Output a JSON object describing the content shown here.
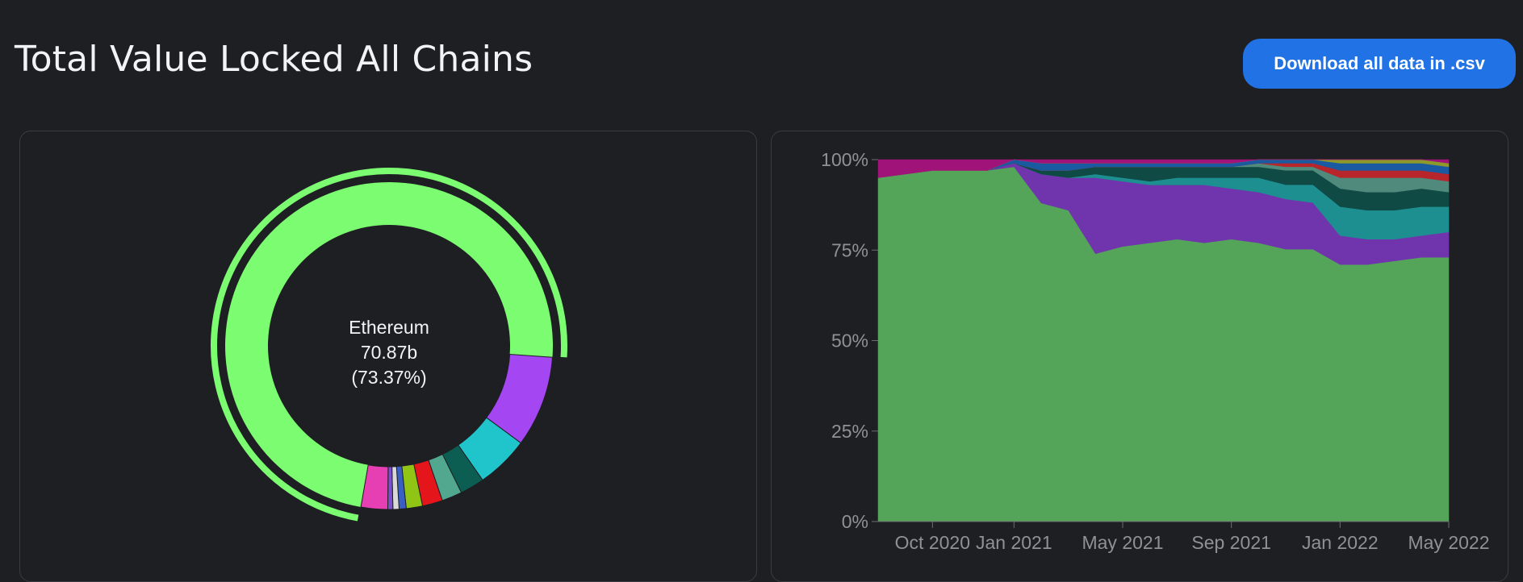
{
  "header": {
    "title": "Total Value Locked All Chains",
    "download_label": "Download all data in .csv"
  },
  "donut": {
    "center_name": "Ethereum",
    "center_value": "70.87b",
    "center_pct": "(73.37%)"
  },
  "chart_data": [
    {
      "type": "pie",
      "variant": "donut",
      "title": "",
      "series": [
        {
          "name": "Ethereum",
          "share": 73.37,
          "color": "#7cfc70"
        },
        {
          "name": "",
          "share": 9.0,
          "color": "#a446f2"
        },
        {
          "name": "",
          "share": 5.2,
          "color": "#20c5cb"
        },
        {
          "name": "",
          "share": 2.4,
          "color": "#0d5e52"
        },
        {
          "name": "",
          "share": 2.0,
          "color": "#52a78f"
        },
        {
          "name": "",
          "share": 2.0,
          "color": "#e4151b"
        },
        {
          "name": "",
          "share": 1.6,
          "color": "#91c515"
        },
        {
          "name": "",
          "share": 0.7,
          "color": "#3a5fc4"
        },
        {
          "name": "",
          "share": 0.6,
          "color": "#d9d9d9"
        },
        {
          "name": "",
          "share": 0.5,
          "color": "#7b4fcf"
        },
        {
          "name": "",
          "share": 2.63,
          "color": "#e63fb3"
        }
      ],
      "highlighted": "Ethereum"
    },
    {
      "type": "area",
      "stacked": "percent",
      "title": "",
      "x": [
        "2020-08",
        "2020-09",
        "2020-10",
        "2020-11",
        "2020-12",
        "2021-01",
        "2021-02",
        "2021-03",
        "2021-04",
        "2021-05",
        "2021-06",
        "2021-07",
        "2021-08",
        "2021-09",
        "2021-10",
        "2021-11",
        "2021-12",
        "2022-01",
        "2022-02",
        "2022-03",
        "2022-04",
        "2022-05"
      ],
      "x_ticks": [
        "Oct 2020",
        "Jan 2021",
        "May 2021",
        "Sep 2021",
        "Jan 2022",
        "May 2022"
      ],
      "ylim": [
        0,
        100
      ],
      "y_ticks": [
        "0%",
        "25%",
        "50%",
        "75%",
        "100%"
      ],
      "series": [
        {
          "name": "Ethereum",
          "color": "#54a559",
          "values": [
            95,
            96,
            97,
            97,
            97,
            98,
            88,
            86,
            74,
            76,
            77,
            78,
            77,
            78,
            77,
            76,
            76,
            71,
            71,
            72,
            73,
            73
          ]
        },
        {
          "name": "",
          "color": "#7035ad",
          "values": [
            0,
            0,
            0,
            0,
            0,
            1,
            8,
            9,
            21,
            18,
            16,
            15,
            16,
            14,
            14,
            14,
            13,
            8,
            7,
            6,
            6,
            7
          ]
        },
        {
          "name": "",
          "color": "#1e8f90",
          "values": [
            0,
            0,
            0,
            0,
            0,
            0,
            0,
            0,
            1,
            1,
            1,
            2,
            2,
            3,
            4,
            4,
            5,
            8,
            8,
            8,
            8,
            7
          ]
        },
        {
          "name": "",
          "color": "#0f4a45",
          "values": [
            0,
            0,
            0,
            0,
            0,
            0,
            1,
            2,
            2,
            3,
            4,
            3,
            3,
            3,
            3,
            4,
            4,
            5,
            5,
            5,
            5,
            4
          ]
        },
        {
          "name": "",
          "color": "#4f8a7d",
          "values": [
            0,
            0,
            0,
            0,
            0,
            0,
            0,
            0,
            0,
            0,
            0,
            0,
            0,
            0,
            1,
            1,
            1,
            3,
            4,
            4,
            3,
            3
          ]
        },
        {
          "name": "",
          "color": "#b8262b",
          "values": [
            0,
            0,
            0,
            0,
            0,
            0,
            0,
            0,
            0,
            0,
            0,
            0,
            0,
            0,
            0,
            1,
            1,
            2,
            2,
            2,
            2,
            2
          ]
        },
        {
          "name": "",
          "color": "#1a5aa0",
          "values": [
            0,
            0,
            0,
            0,
            0,
            1,
            2,
            2,
            1,
            1,
            1,
            1,
            1,
            1,
            1,
            1,
            1,
            2,
            2,
            2,
            2,
            2
          ]
        },
        {
          "name": "",
          "color": "#8d9a2a",
          "values": [
            0,
            0,
            0,
            0,
            0,
            0,
            0,
            0,
            0,
            0,
            0,
            0,
            0,
            0,
            0,
            0,
            0,
            1,
            1,
            1,
            1,
            1
          ]
        },
        {
          "name": "",
          "color": "#a0147a",
          "values": [
            5,
            4,
            3,
            3,
            3,
            0,
            1,
            1,
            1,
            1,
            1,
            1,
            1,
            1,
            0,
            0,
            0,
            0,
            0,
            0,
            0,
            1
          ]
        }
      ]
    }
  ]
}
